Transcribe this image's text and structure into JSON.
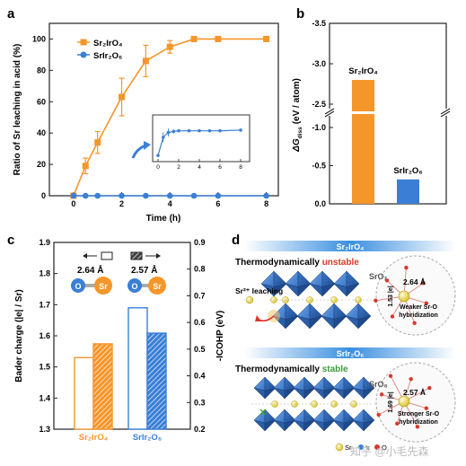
{
  "panels": {
    "a": {
      "label": "a"
    },
    "b": {
      "label": "b"
    },
    "c": {
      "label": "c"
    },
    "d": {
      "label": "d"
    }
  },
  "colors": {
    "sr2iro4": "#f5962b",
    "srir2o6": "#3a7fd5",
    "axis": "#222222",
    "orange_text": "#e8892a",
    "green_text": "#3c9a3c",
    "red_text": "#d9372b"
  },
  "chart_data": [
    {
      "id": "a",
      "type": "line",
      "ylabel": "Ratio of Sr leaching in acid (%)",
      "xlabel": "Time (h)",
      "xlim": [
        -1,
        8.5
      ],
      "ylim": [
        0,
        110
      ],
      "xticks": [
        0,
        2,
        4,
        6,
        8
      ],
      "yticks": [
        0,
        20,
        40,
        60,
        80,
        100
      ],
      "series": [
        {
          "name": "Sr₂IrO₄",
          "color": "#f5962b",
          "marker": "square",
          "x": [
            0,
            0.5,
            1,
            2,
            3,
            4,
            5,
            6,
            8
          ],
          "y": [
            0,
            19,
            34,
            63,
            86,
            95,
            100,
            100,
            100
          ],
          "err": [
            0,
            5,
            7,
            12,
            10,
            4,
            0,
            0,
            0
          ]
        },
        {
          "name": "SrIr₂O₆",
          "color": "#3a7fd5",
          "marker": "circle",
          "x": [
            0,
            0.5,
            1,
            2,
            3,
            4,
            5,
            6,
            8
          ],
          "y": [
            0,
            0,
            0,
            0,
            0,
            0,
            0,
            0,
            0
          ],
          "err": [
            0,
            0,
            0,
            0,
            0,
            0,
            0,
            0,
            0
          ]
        }
      ],
      "inset": {
        "xticks": [
          0,
          2,
          4,
          6,
          8
        ],
        "x": [
          0,
          0.5,
          1,
          1.5,
          2,
          3,
          4,
          5,
          6,
          8
        ],
        "y": [
          0.05,
          0.6,
          0.75,
          0.78,
          0.8,
          0.8,
          0.8,
          0.8,
          0.8,
          0.82
        ],
        "err": [
          0,
          0.15,
          0.12,
          0.06,
          0.05,
          0.04,
          0.04,
          0.04,
          0.04,
          0.03
        ],
        "ylim": [
          0,
          1.2
        ]
      }
    },
    {
      "id": "b",
      "type": "bar",
      "ylabel": "ΔG",
      "ylabel_sub": "diss",
      "ylabel_unit": "(eV / atom)",
      "categories": [
        "Sr₂IrO₄",
        "SrIr₂O₆"
      ],
      "values": [
        -2.8,
        -0.32
      ],
      "colors": [
        "#f5962b",
        "#3a7fd5"
      ],
      "ylim": [
        0,
        -3.5
      ],
      "axis_break": [
        -1.2,
        -2.4
      ],
      "yticks": [
        "-3.5",
        "-3.0",
        "-2.5",
        "-1.0",
        "-0.5",
        "0.0"
      ]
    },
    {
      "id": "c",
      "type": "bar",
      "ylabel": "Bader charge (|e| / Sr)",
      "ylabel_right": "-ICOHP (eV)",
      "categories": [
        "Sr₂IrO₄",
        "SrIr₂O₆"
      ],
      "series": [
        {
          "name": "Bader charge",
          "axis": "left",
          "values": [
            1.53,
            1.69
          ]
        },
        {
          "name": "-ICOHP",
          "axis": "right",
          "values": [
            0.52,
            0.56
          ]
        }
      ],
      "ylim_left": [
        1.3,
        1.9
      ],
      "ylim_right": [
        0.2,
        0.9
      ],
      "yticks_left": [
        "1.3",
        "1.4",
        "1.5",
        "1.6",
        "1.7",
        "1.8",
        "1.9"
      ],
      "yticks_right": [
        "0.2",
        "0.3",
        "0.4",
        "0.5",
        "0.6",
        "0.7",
        "0.8",
        "0.9"
      ],
      "annotations": {
        "bond1": "2.64 Å",
        "bond2": "2.57 Å",
        "o": "O",
        "sr": "Sr"
      }
    }
  ],
  "panel_d": {
    "header1": "Sr₂IrO₄",
    "header2": "SrIr₂O₆",
    "title1_prefix": "Thermodynamically ",
    "title1_word": "unstable",
    "title2_prefix": "Thermodynamically ",
    "title2_word": "stable",
    "leach_label": "Sr²⁺ leaching",
    "sro_label1": "SrO₇",
    "sro_label2": "SrO₈",
    "dist1a": "1.53 |e|",
    "dist1b": "2.64 Å",
    "dist2a": "1.69 |e|",
    "dist2b": "2.57 Å",
    "note1a": "Weaker Sr-O",
    "note1b": "hybridization",
    "note2a": "Stronger Sr-O",
    "note2b": "hybridization",
    "legend_sr": "Sr",
    "legend_ir": "Ir",
    "legend_o": "O"
  },
  "watermark": "知乎 @小毛先森"
}
